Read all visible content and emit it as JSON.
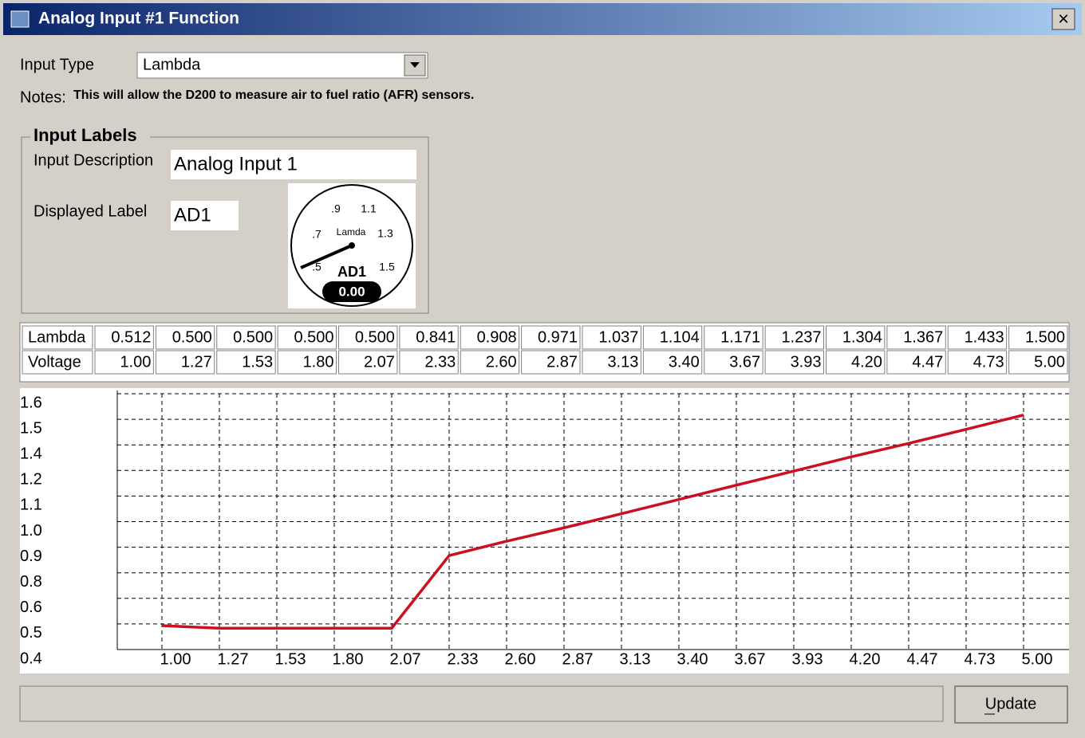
{
  "window": {
    "title": "Analog Input #1 Function",
    "close": "×"
  },
  "form": {
    "input_type_label": "Input Type",
    "input_type_value": "Lambda",
    "notes_label": "Notes:",
    "notes_text": "This will allow the D200 to measure air to fuel ratio (AFR) sensors.",
    "group_title": "Input Labels",
    "description_label": "Input Description",
    "description_value": "Analog Input 1",
    "displayed_label": "Displayed Label",
    "displayed_value": "AD1"
  },
  "gauge": {
    "scale_labels": [
      ".5",
      ".7",
      ".9",
      "1.1",
      "1.3",
      "1.5"
    ],
    "name": "Lamda",
    "label": "AD1",
    "reading": "0.00"
  },
  "table": {
    "rows": [
      [
        "Lambda",
        "0.512",
        "0.500",
        "0.500",
        "0.500",
        "0.500",
        "0.841",
        "0.908",
        "0.971",
        "1.037",
        "1.104",
        "1.171",
        "1.237",
        "1.304",
        "1.367",
        "1.433",
        "1.500"
      ],
      [
        "Voltage",
        "1.00",
        "1.27",
        "1.53",
        "1.80",
        "2.07",
        "2.33",
        "2.60",
        "2.87",
        "3.13",
        "3.40",
        "3.67",
        "3.93",
        "4.20",
        "4.47",
        "4.73",
        "5.00"
      ]
    ]
  },
  "chart_data": {
    "type": "line",
    "categories": [
      "1.00",
      "1.27",
      "1.53",
      "1.80",
      "2.07",
      "2.33",
      "2.60",
      "2.87",
      "3.13",
      "3.40",
      "3.67",
      "3.93",
      "4.20",
      "4.47",
      "4.73",
      "5.00"
    ],
    "values": [
      0.512,
      0.5,
      0.5,
      0.5,
      0.5,
      0.841,
      0.908,
      0.971,
      1.037,
      1.104,
      1.171,
      1.237,
      1.304,
      1.367,
      1.433,
      1.5
    ],
    "color": "#cc1020",
    "ylim": [
      0.4,
      1.6
    ],
    "yticks": [
      0.4,
      {
        "value": 0.52,
        "label": "0.5"
      },
      {
        "value": 0.64,
        "label": "0.6"
      },
      {
        "value": 0.76,
        "label": "0.8"
      },
      {
        "value": 0.88,
        "label": "0.9"
      },
      {
        "value": 1.0,
        "label": "1.0"
      },
      {
        "value": 1.12,
        "label": "1.1"
      },
      {
        "value": 1.24,
        "label": "1.2"
      },
      {
        "value": 1.36,
        "label": "1.4"
      },
      {
        "value": 1.48,
        "label": "1.5"
      },
      1.6
    ],
    "grid": true
  },
  "status": {
    "button": "Update"
  }
}
